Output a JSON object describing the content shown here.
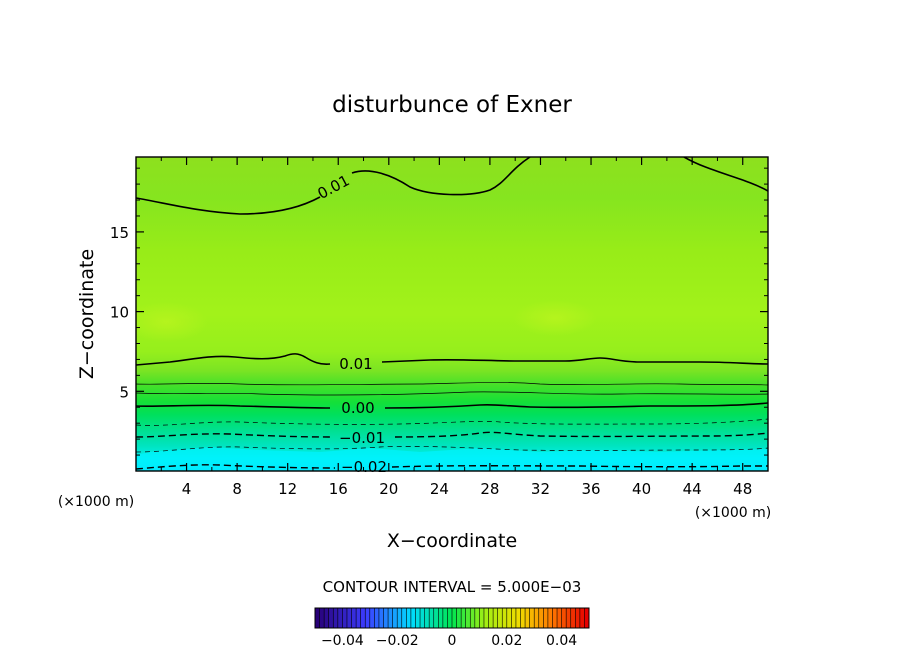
{
  "chart_data": {
    "type": "contour",
    "title": "disturbunce of Exner",
    "xlabel": "X−coordinate",
    "ylabel": "Z−coordinate",
    "x_unit": "(×1000 m)",
    "z_unit": "(×1000 m)",
    "xlim": [
      0,
      50
    ],
    "ylim": [
      0,
      19.7
    ],
    "x_ticks": [
      4,
      8,
      12,
      16,
      20,
      24,
      28,
      32,
      36,
      40,
      44,
      48
    ],
    "y_ticks": [
      5,
      10,
      15
    ],
    "contour_interval_text": "CONTOUR INTERVAL = 5.000E−03",
    "contour_interval": 0.005,
    "contour_labels": [
      "0.01",
      "0.01",
      "0.00",
      "−0.01",
      "−0.02"
    ],
    "colorbar": {
      "range": [
        -0.05,
        0.05
      ],
      "tick_values": [
        -0.04,
        -0.02,
        0,
        0.02,
        0.04
      ],
      "tick_labels": [
        "−0.04",
        "−0.02",
        "0",
        "0.02",
        "0.04"
      ]
    },
    "colors": {
      "frame": "#000000",
      "field_low": "#00e0ff",
      "field_mid": "#00e040",
      "field_high": "#a6f01a"
    }
  }
}
